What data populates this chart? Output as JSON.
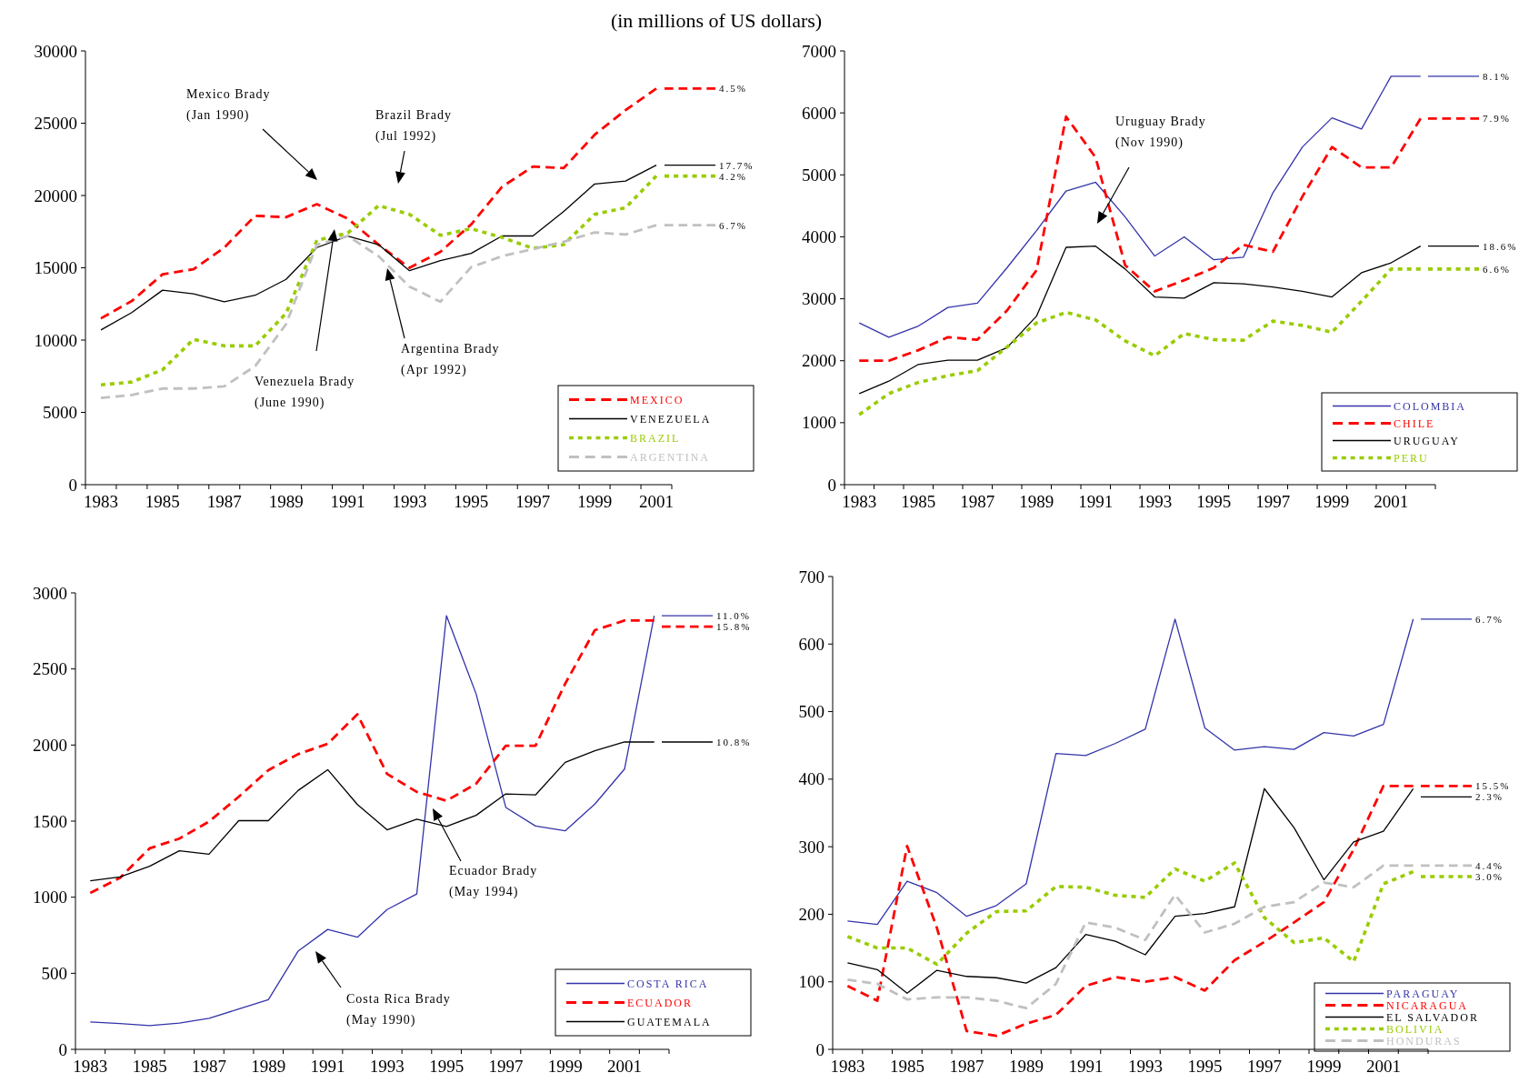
{
  "chart_data": [
    {
      "type": "line",
      "title": "(in millions of US dollars)",
      "categories": [
        "1983",
        null,
        "1985",
        null,
        "1987",
        null,
        "1989",
        null,
        "1991",
        null,
        "1993",
        null,
        "1995",
        null,
        "1997",
        null,
        "1999",
        null,
        "2001"
      ],
      "series": [
        {
          "name": "MEXICO",
          "color": "#ff0000",
          "line_style": "dashed",
          "values": [
            11500,
            12700,
            14550,
            14900,
            16400,
            18600,
            18500,
            19400,
            18400,
            16600,
            15000,
            16100,
            18000,
            20600,
            22000,
            21900,
            24200,
            25900,
            27400
          ]
        },
        {
          "name": "VENEZUELA",
          "color": "#000000",
          "line_style": "solid",
          "values": [
            10700,
            11900,
            13450,
            13200,
            12650,
            13100,
            14200,
            16400,
            17200,
            16600,
            14800,
            15500,
            16000,
            17200,
            17200,
            18900,
            20800,
            21000,
            22100
          ]
        },
        {
          "name": "BRAZIL",
          "color": "#99cc00",
          "line_style": "dotted",
          "values": [
            6900,
            7100,
            7950,
            10050,
            9600,
            9600,
            11850,
            16900,
            17400,
            19300,
            18700,
            17250,
            17700,
            17100,
            16350,
            16600,
            18700,
            19150,
            21350
          ]
        },
        {
          "name": "ARGENTINA",
          "color": "#c0c0c0",
          "line_style": "dashed",
          "values": [
            6000,
            6200,
            6650,
            6650,
            6800,
            8200,
            11100,
            16600,
            17200,
            15800,
            13700,
            12650,
            15050,
            15800,
            16300,
            16800,
            17450,
            17300,
            17950
          ]
        }
      ],
      "ylim": [
        0,
        30000
      ],
      "yticks": [
        0,
        5000,
        10000,
        15000,
        20000,
        25000,
        30000
      ],
      "grid": false,
      "legend": "bottom right",
      "marker": "none",
      "annotations": [
        "4.5%",
        "17.7%",
        "4.2%",
        "6.7%",
        "Mexico Brady (Jan 1990)",
        "Brazil Brady (Jul 1992)",
        "Venezuela Brady (June 1990)",
        "Argentina Brady (Apr 1992)"
      ]
    },
    {
      "type": "line",
      "categories": [
        "1983",
        null,
        "1985",
        null,
        "1987",
        null,
        "1989",
        null,
        "1991",
        null,
        "1993",
        null,
        "1995",
        null,
        "1997",
        null,
        "1999",
        null,
        "2001",
        null
      ],
      "series": [
        {
          "name": "COLOMBIA",
          "color": "#3333aa",
          "line_style": "solid",
          "values": [
            2610,
            2380,
            2560,
            2860,
            2930,
            3500,
            4100,
            4740,
            4880,
            4320,
            3690,
            4000,
            3630,
            3670,
            4710,
            5450,
            5920,
            5740,
            6590,
            6590
          ]
        },
        {
          "name": "CHILE",
          "color": "#ff0000",
          "line_style": "dashed",
          "values": [
            2000,
            2000,
            2170,
            2380,
            2340,
            2810,
            3460,
            5940,
            5280,
            3540,
            3120,
            3300,
            3500,
            3870,
            3760,
            4650,
            5450,
            5120,
            5120,
            5910
          ]
        },
        {
          "name": "URUGUAY",
          "color": "#000000",
          "line_style": "solid",
          "values": [
            1470,
            1670,
            1940,
            2010,
            2010,
            2210,
            2720,
            3830,
            3850,
            3480,
            3030,
            3010,
            3260,
            3240,
            3190,
            3120,
            3030,
            3420,
            3580,
            3850
          ]
        },
        {
          "name": "PERU",
          "color": "#99cc00",
          "line_style": "dotted",
          "values": [
            1130,
            1470,
            1650,
            1760,
            1840,
            2220,
            2610,
            2780,
            2660,
            2320,
            2080,
            2440,
            2340,
            2330,
            2640,
            2570,
            2460,
            2960,
            3480,
            3480
          ]
        }
      ],
      "ylim": [
        0,
        7000
      ],
      "yticks": [
        0,
        1000,
        2000,
        3000,
        4000,
        5000,
        6000,
        7000
      ],
      "grid": false,
      "legend": "bottom right",
      "marker": "none",
      "annotations": [
        "8.1%",
        "7.9%",
        "18.6%",
        "6.6%",
        "Uruguay Brady (Nov 1990)"
      ]
    },
    {
      "type": "line",
      "categories": [
        "1983",
        null,
        "1985",
        null,
        "1987",
        null,
        "1989",
        null,
        "1991",
        null,
        "1993",
        null,
        "1995",
        null,
        "1997",
        null,
        "1999",
        null,
        "2001",
        null
      ],
      "series": [
        {
          "name": "COSTA RICA",
          "color": "#3333aa",
          "line_style": "solid",
          "values": [
            180,
            170,
            156,
            172,
            204,
            265,
            326,
            645,
            788,
            737,
            919,
            1021,
            2850,
            2336,
            1590,
            1468,
            1436,
            1612,
            1842,
            2850
          ]
        },
        {
          "name": "ECUADOR",
          "color": "#ff0000",
          "line_style": "dashed",
          "values": [
            1028,
            1127,
            1321,
            1385,
            1497,
            1660,
            1835,
            1940,
            2008,
            2202,
            1810,
            1692,
            1634,
            1746,
            1995,
            1995,
            2403,
            2755,
            2818,
            2818
          ]
        },
        {
          "name": "GUATEMALA",
          "color": "#000000",
          "line_style": "solid",
          "values": [
            1108,
            1133,
            1203,
            1305,
            1283,
            1503,
            1503,
            1701,
            1838,
            1609,
            1443,
            1513,
            1465,
            1538,
            1679,
            1672,
            1886,
            1963,
            2020,
            2020
          ]
        }
      ],
      "ylim": [
        0,
        3000
      ],
      "yticks": [
        0,
        500,
        1000,
        1500,
        2000,
        2500,
        3000
      ],
      "grid": false,
      "legend": "bottom right",
      "marker": "none",
      "annotations": [
        "11.0%",
        "15.8%",
        "10.8%",
        "Ecuador Brady (May 1994)",
        "Costa Rica Brady (May 1990)"
      ]
    },
    {
      "type": "line",
      "categories": [
        "1983",
        null,
        "1985",
        null,
        "1987",
        null,
        "1989",
        null,
        "1991",
        null,
        "1993",
        null,
        "1995",
        null,
        "1997",
        null,
        "1999",
        null,
        "2001",
        null
      ],
      "series": [
        {
          "name": "PARAGUAY",
          "color": "#3333aa",
          "line_style": "solid",
          "values": [
            190,
            185,
            249,
            232,
            197,
            213,
            245,
            438,
            435,
            453,
            474,
            637,
            476,
            443,
            448,
            444,
            469,
            464,
            481,
            637
          ]
        },
        {
          "name": "NICARAGUA",
          "color": "#ff0000",
          "line_style": "dashed",
          "values": [
            94,
            72,
            301,
            180,
            27,
            20,
            38,
            51,
            94,
            107,
            100,
            107,
            87,
            132,
            159,
            188,
            218,
            296,
            390,
            390
          ]
        },
        {
          "name": "EL SALVADOR",
          "color": "#000000",
          "line_style": "solid",
          "values": [
            128,
            118,
            83,
            117,
            108,
            106,
            98,
            121,
            170,
            160,
            140,
            197,
            201,
            211,
            386,
            328,
            251,
            307,
            323,
            386
          ]
        },
        {
          "name": "BOLIVIA",
          "color": "#99cc00",
          "line_style": "dotted",
          "values": [
            167,
            150,
            150,
            126,
            172,
            204,
            205,
            241,
            240,
            228,
            225,
            267,
            249,
            276,
            195,
            158,
            165,
            130,
            245,
            263
          ]
        },
        {
          "name": "HONDURAS",
          "color": "#c0c0c0",
          "line_style": "dashed",
          "values": [
            103,
            97,
            74,
            77,
            77,
            72,
            61,
            97,
            188,
            180,
            162,
            229,
            173,
            186,
            211,
            218,
            247,
            240,
            272,
            272
          ]
        }
      ],
      "ylim": [
        0,
        700
      ],
      "yticks": [
        0,
        100,
        200,
        300,
        400,
        500,
        600,
        700
      ],
      "grid": false,
      "legend": "bottom right",
      "marker": "none",
      "annotations": [
        "6.7%",
        "15.5%",
        "2.3%",
        "3.0%",
        "4.4%"
      ]
    }
  ]
}
